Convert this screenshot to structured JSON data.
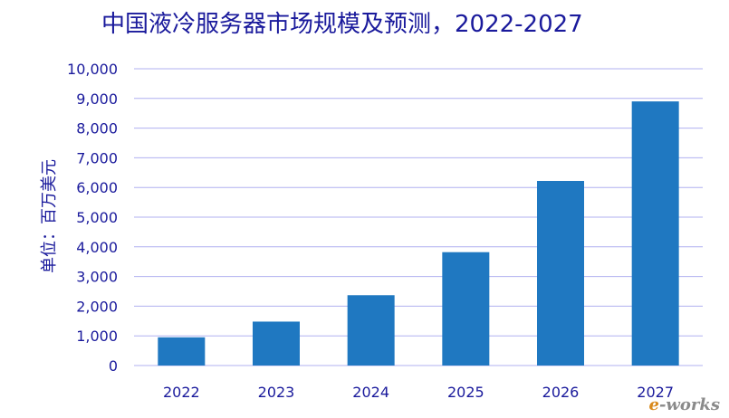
{
  "chart_data": {
    "type": "bar",
    "title": "中国液冷服务器市场规模及预测，2022-2027",
    "xlabel": "",
    "ylabel": "单位：百万美元",
    "categories": [
      "2022",
      "2023",
      "2024",
      "2025",
      "2026",
      "2027"
    ],
    "values": [
      950,
      1480,
      2370,
      3820,
      6220,
      8900
    ],
    "ylim": [
      0,
      10000
    ],
    "yticks": [
      0,
      1000,
      2000,
      3000,
      4000,
      5000,
      6000,
      7000,
      8000,
      9000,
      10000
    ],
    "ytick_labels": [
      "0",
      "1,000",
      "2,000",
      "3,000",
      "4,000",
      "5,000",
      "6,000",
      "7,000",
      "8,000",
      "9,000",
      "10,000"
    ],
    "grid": true,
    "legend": "none"
  },
  "colors": {
    "bar": "#1f78c1",
    "grid": "#b0b0f0",
    "text": "#1a1a9c"
  },
  "watermark": {
    "e_part": "e",
    "rest_part": "-works"
  }
}
